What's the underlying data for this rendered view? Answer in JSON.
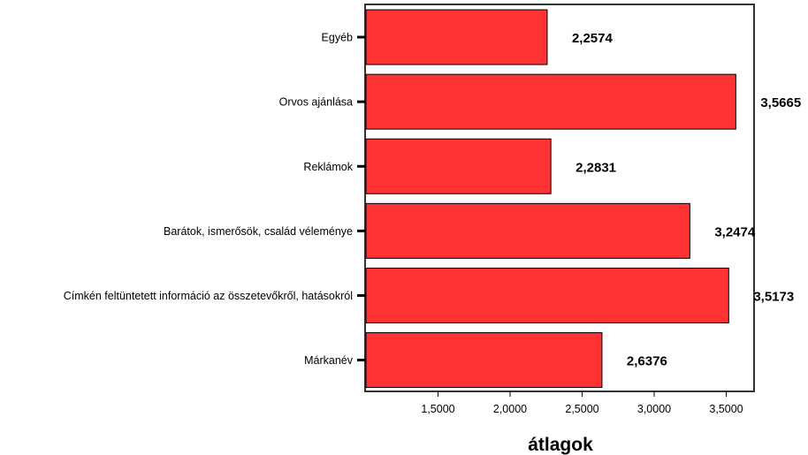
{
  "chart_data": {
    "type": "bar",
    "orientation": "horizontal",
    "categories": [
      "Egyéb",
      "Orvos ajánlása",
      "Reklámok",
      "Barátok, ismerősök, család véleménye",
      "Címkén feltüntetett információ az összetevőkről, hatásokról",
      "Márkanév"
    ],
    "values": [
      2.2574,
      3.5665,
      2.2831,
      3.2474,
      3.5173,
      2.6376
    ],
    "value_labels": [
      "2,2574",
      "3,5665",
      "2,2831",
      "3,2474",
      "3,5173",
      "2,6376"
    ],
    "xlabel": "átlagok",
    "xlim": [
      1.0,
      3.7
    ],
    "xticks": [
      1.5,
      2.0,
      2.5,
      3.0,
      3.5
    ],
    "xtick_labels": [
      "1,5000",
      "2,0000",
      "2,5000",
      "3,0000",
      "3,5000"
    ],
    "grid": false,
    "bar_color": "#ff3333"
  }
}
